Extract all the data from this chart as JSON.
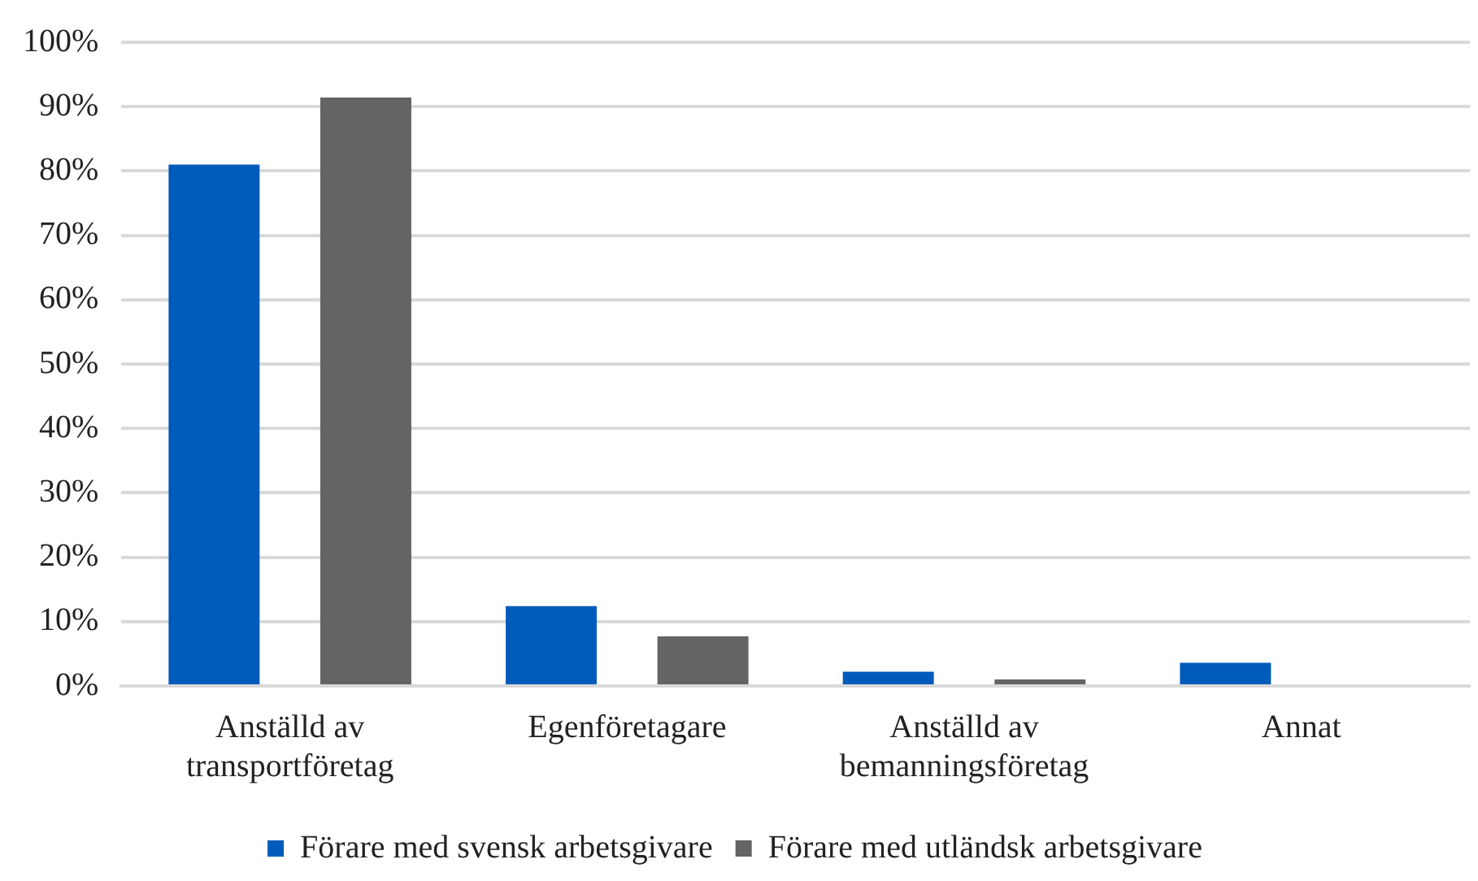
{
  "chart_data": {
    "type": "bar",
    "categories": [
      "Anställd av transportföretag",
      "Egenföretagare",
      "Anställd av bemanningsföretag",
      "Annat"
    ],
    "series": [
      {
        "name": "Förare med svensk arbetsgivare",
        "color": "#005bbb",
        "values": [
          81.0,
          12.4,
          2.2,
          3.6
        ]
      },
      {
        "name": "Förare med utländsk arbetsgivare",
        "color": "#636466",
        "values": [
          91.4,
          7.7,
          1.0,
          0
        ]
      }
    ],
    "ylim": [
      0,
      100
    ],
    "yticks": [
      {
        "value": 0,
        "label": "0%"
      },
      {
        "value": 10,
        "label": "10%"
      },
      {
        "value": 20,
        "label": "20%"
      },
      {
        "value": 30,
        "label": "30%"
      },
      {
        "value": 40,
        "label": "40%"
      },
      {
        "value": 50,
        "label": "50%"
      },
      {
        "value": 60,
        "label": "60%"
      },
      {
        "value": 70,
        "label": "70%"
      },
      {
        "value": 80,
        "label": "80%"
      },
      {
        "value": 90,
        "label": "90%"
      },
      {
        "value": 100,
        "label": "100%"
      }
    ],
    "grid": "y",
    "legend": "bottom"
  }
}
